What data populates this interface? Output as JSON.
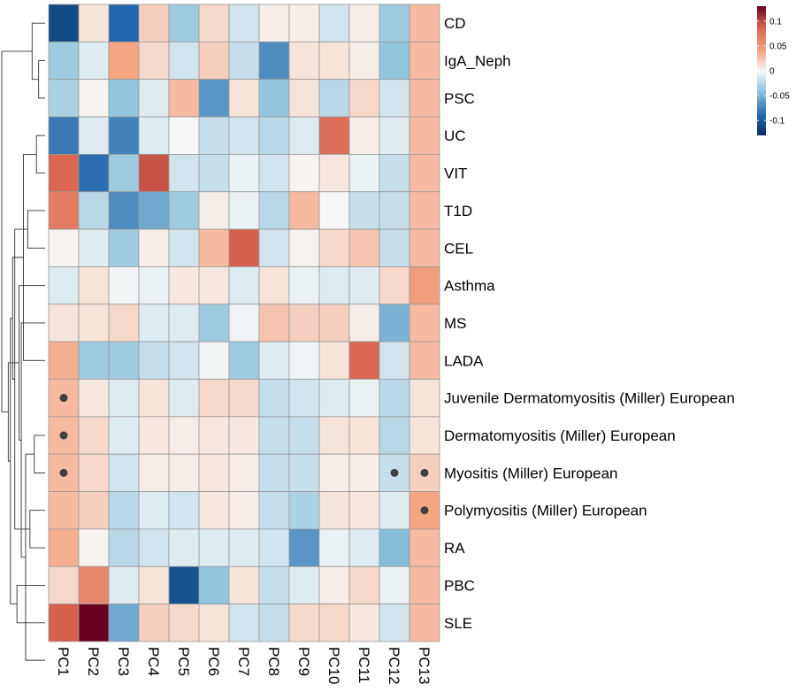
{
  "chart_data": {
    "type": "heatmap",
    "title": "",
    "columns": [
      "PC1",
      "PC2",
      "PC3",
      "PC4",
      "PC5",
      "PC6",
      "PC7",
      "PC8",
      "PC9",
      "PC10",
      "PC11",
      "PC12",
      "PC13"
    ],
    "rows": [
      "CD",
      "IgA_Neph",
      "PSC",
      "UC",
      "VIT",
      "T1D",
      "CEL",
      "Asthma",
      "MS",
      "LADA",
      "Juvenile Dermatomyositis (Miller) European",
      "Dermatomyositis (Miller) European",
      "Myositis (Miller) European",
      "Polymyositis (Miller) European",
      "RA",
      "PBC",
      "SLE"
    ],
    "values": [
      [
        -0.11,
        0.01,
        -0.09,
        0.02,
        -0.035,
        0.015,
        -0.015,
        0.005,
        0.005,
        -0.015,
        0.005,
        -0.035,
        0.03
      ],
      [
        -0.035,
        -0.01,
        0.04,
        0.015,
        -0.015,
        0.02,
        -0.02,
        -0.07,
        0.01,
        0.01,
        0.005,
        -0.04,
        0.03
      ],
      [
        -0.03,
        0.002,
        -0.04,
        -0.01,
        0.03,
        -0.065,
        0.01,
        -0.04,
        0.01,
        -0.025,
        0.015,
        -0.015,
        0.03
      ],
      [
        -0.08,
        -0.01,
        -0.075,
        -0.01,
        0.0,
        -0.02,
        -0.015,
        -0.025,
        -0.01,
        0.08,
        0.005,
        -0.01,
        0.03
      ],
      [
        0.085,
        -0.085,
        -0.035,
        0.095,
        -0.015,
        -0.02,
        -0.005,
        -0.015,
        0.002,
        0.008,
        -0.005,
        -0.02,
        0.03
      ],
      [
        0.07,
        -0.025,
        -0.07,
        -0.055,
        -0.035,
        0.005,
        -0.005,
        -0.025,
        0.03,
        0.0,
        -0.02,
        -0.02,
        0.03
      ],
      [
        0.002,
        -0.01,
        -0.035,
        0.005,
        -0.015,
        0.03,
        0.09,
        -0.015,
        0.003,
        0.015,
        0.025,
        -0.02,
        0.03
      ],
      [
        -0.01,
        0.01,
        -0.002,
        -0.005,
        0.008,
        0.008,
        -0.01,
        0.01,
        -0.005,
        -0.01,
        -0.01,
        0.015,
        0.045
      ],
      [
        0.01,
        0.01,
        0.015,
        -0.01,
        -0.01,
        -0.035,
        -0.003,
        0.025,
        0.02,
        0.02,
        0.005,
        -0.05,
        0.03
      ],
      [
        0.035,
        -0.035,
        -0.035,
        -0.02,
        -0.015,
        -0.002,
        -0.035,
        -0.01,
        -0.003,
        0.01,
        0.085,
        -0.015,
        0.03
      ],
      [
        0.03,
        0.008,
        -0.01,
        0.01,
        -0.01,
        0.015,
        0.015,
        -0.02,
        -0.015,
        -0.01,
        -0.005,
        -0.025,
        0.01
      ],
      [
        0.03,
        0.015,
        -0.01,
        0.008,
        0.005,
        0.008,
        0.008,
        -0.02,
        -0.02,
        0.01,
        0.01,
        -0.025,
        0.01
      ],
      [
        0.03,
        0.015,
        -0.015,
        0.005,
        0.005,
        0.008,
        0.005,
        -0.02,
        -0.02,
        0.005,
        0.005,
        -0.02,
        0.02
      ],
      [
        0.03,
        0.02,
        -0.025,
        -0.01,
        -0.015,
        0.008,
        0.005,
        -0.02,
        -0.03,
        0.01,
        0.008,
        -0.01,
        0.04
      ],
      [
        0.035,
        0.002,
        -0.025,
        -0.015,
        -0.01,
        -0.01,
        -0.01,
        -0.015,
        -0.065,
        -0.005,
        -0.01,
        -0.045,
        0.03
      ],
      [
        0.015,
        0.06,
        -0.01,
        0.01,
        -0.105,
        -0.04,
        0.01,
        -0.02,
        -0.01,
        0.005,
        0.015,
        -0.005,
        0.03
      ],
      [
        0.09,
        0.13,
        -0.055,
        0.02,
        0.015,
        0.01,
        -0.015,
        -0.02,
        0.015,
        0.015,
        0.008,
        -0.015,
        0.03
      ]
    ],
    "dots": [
      [
        10,
        0
      ],
      [
        11,
        0
      ],
      [
        12,
        0
      ],
      [
        12,
        11
      ],
      [
        12,
        12
      ],
      [
        13,
        12
      ]
    ],
    "legend": {
      "placement": "top-right",
      "ticks": [
        0.1,
        0.05,
        0,
        -0.05,
        -0.1
      ],
      "tick_labels": [
        "0.1",
        "0.05",
        "0",
        "-0.05",
        "-0.1"
      ],
      "range": [
        -0.13,
        0.13
      ]
    },
    "colors": {
      "low": "#053061",
      "mid_low": "#2166AC",
      "light_low": "#92C5DE",
      "mid": "#F7F7F7",
      "light_high": "#F4A582",
      "mid_high": "#D6604D",
      "high": "#67001F",
      "grid": "#999999",
      "dot": "#404040"
    },
    "dendrogram": {
      "merge": [
        [
          1,
          2
        ],
        [
          3,
          4
        ],
        [
          11,
          12
        ],
        [
          0,
          "a"
        ],
        [
          13,
          14
        ],
        [
          5,
          6
        ],
        [
          17,
          "c"
        ],
        [
          9,
          "b"
        ],
        [
          8,
          "g"
        ],
        [
          7,
          "i"
        ],
        [
          15,
          16
        ],
        [
          "e",
          "f"
        ],
        [
          "h",
          "l"
        ],
        [
          "k",
          "m"
        ],
        [
          "j",
          "n"
        ],
        [
          "d",
          "o"
        ]
      ],
      "height": [
        0.15,
        0.2,
        0.25,
        0.3,
        0.35,
        0.4,
        0.45,
        0.5,
        0.55,
        0.6,
        0.65,
        0.7,
        0.75,
        0.8,
        0.85,
        1.0
      ]
    }
  }
}
